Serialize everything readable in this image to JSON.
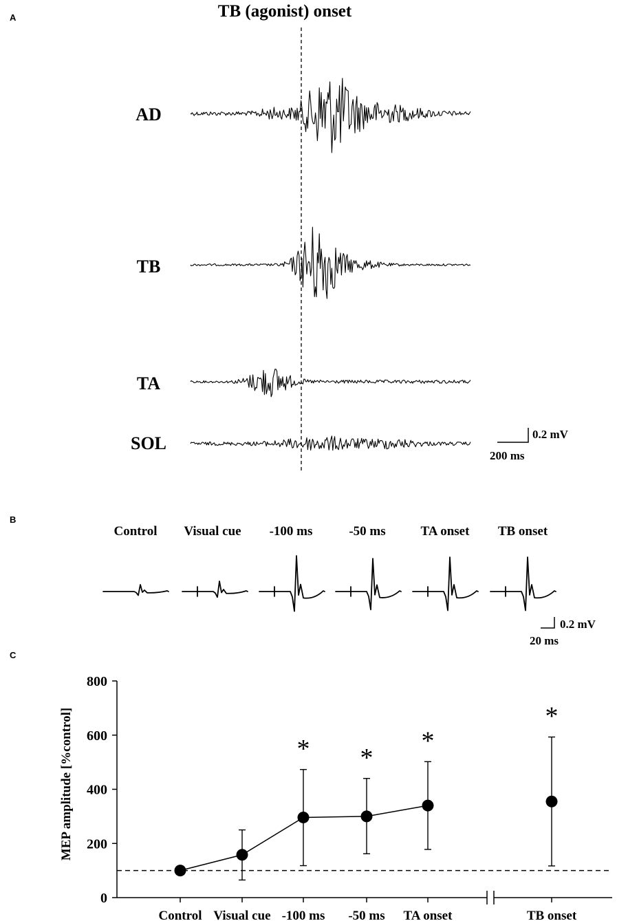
{
  "panel_a": {
    "label": "A",
    "title": "TB (agonist) onset",
    "muscles": [
      "AD",
      "TB",
      "TA",
      "SOL"
    ],
    "scale_voltage": "0.2 mV",
    "scale_time": "200 ms"
  },
  "panel_b": {
    "label": "B",
    "conditions": [
      "Control",
      "Visual cue",
      "-100 ms",
      "-50 ms",
      "TA onset",
      "TB onset"
    ],
    "scale_voltage": "0.2 mV",
    "scale_time": "20 ms"
  },
  "panel_c": {
    "label": "C",
    "significance_marker": "*"
  },
  "chart_data": {
    "type": "scatter",
    "ylabel": "MEP amplitude [%control]",
    "xlabel": "",
    "categories": [
      "Control",
      "Visual cue",
      "-100 ms",
      "-50 ms",
      "TA onset",
      "TB onset"
    ],
    "yticks": [
      0,
      200,
      400,
      600,
      800
    ],
    "ylim": [
      0,
      800
    ],
    "reference_line": 100,
    "axis_break_before": "TB onset",
    "connected_categories": [
      "Control",
      "Visual cue",
      "-100 ms",
      "-50 ms",
      "TA onset"
    ],
    "series": [
      {
        "values": [
          100,
          158,
          296,
          300,
          340,
          355
        ],
        "error_upper": [
          100,
          250,
          473,
          440,
          502,
          593
        ],
        "error_lower": [
          100,
          65,
          118,
          162,
          178,
          117
        ],
        "significant": [
          false,
          false,
          true,
          true,
          true,
          true
        ]
      }
    ]
  }
}
